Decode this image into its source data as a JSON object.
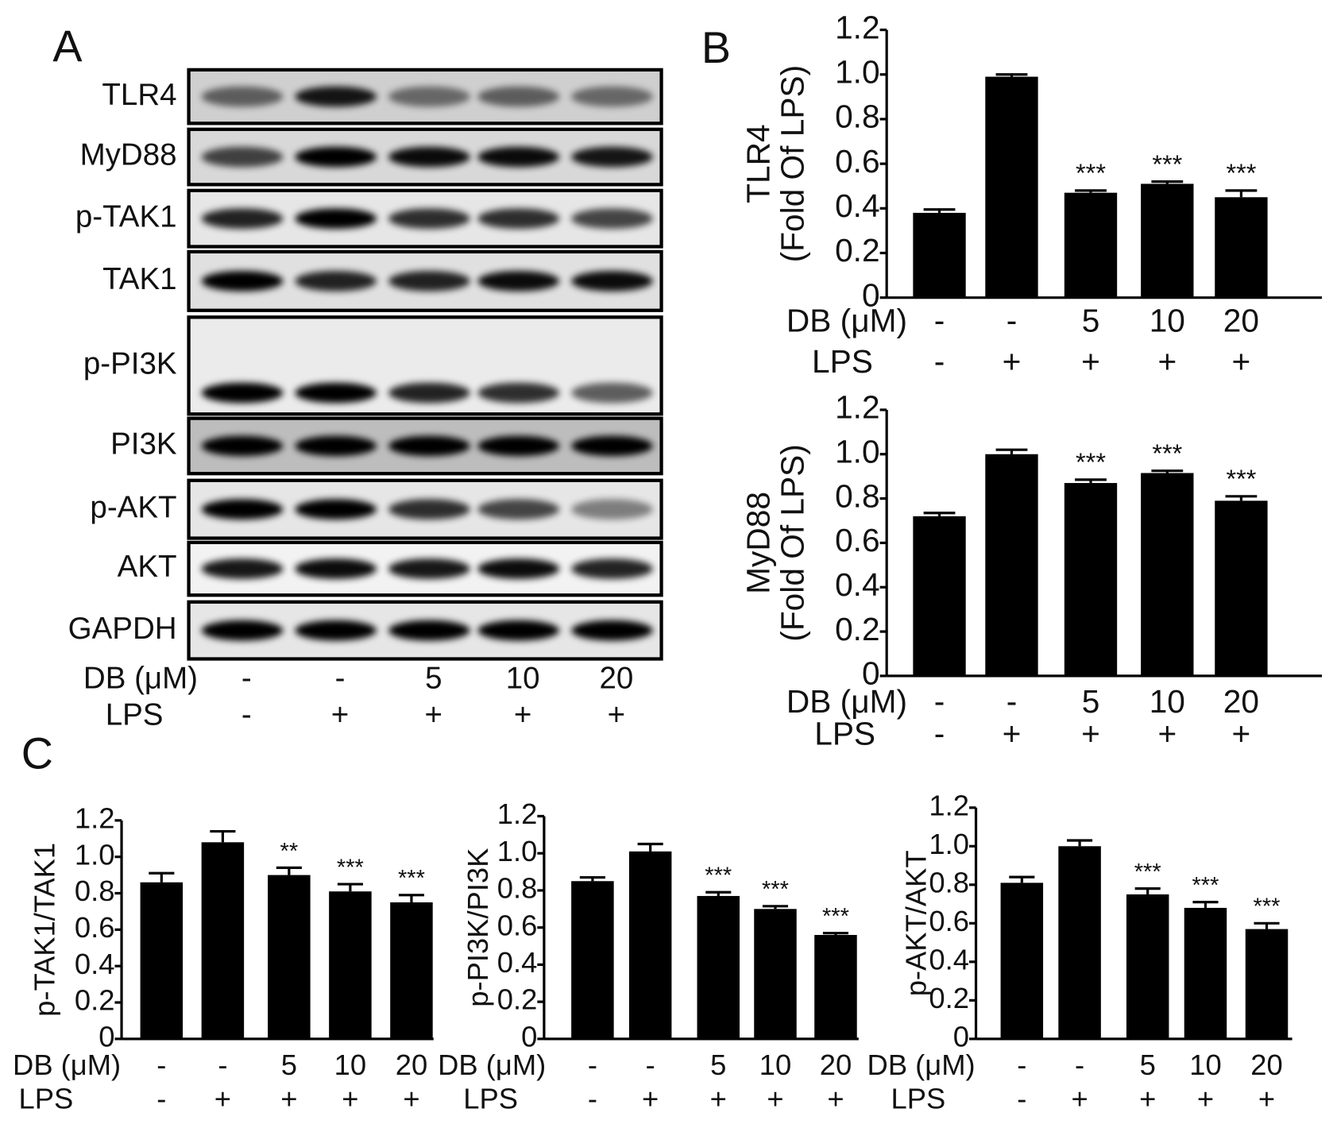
{
  "blot": {
    "panel": "A",
    "rows": [
      "TLR4",
      "MyD88",
      "p-TAK1",
      "TAK1",
      "p-PI3K",
      "PI3K",
      "p-AKT",
      "AKT",
      "GAPDH"
    ],
    "x_label_rows": [
      {
        "label": "DB (μM)",
        "values": [
          "-",
          "-",
          "5",
          "10",
          "20"
        ]
      },
      {
        "label": "LPS",
        "values": [
          "-",
          "+",
          "+",
          "+",
          "+"
        ]
      }
    ]
  },
  "chart_data": [
    {
      "type": "bar",
      "panel": "B",
      "ylabel": [
        "TLR4",
        "(Fold Of LPS)"
      ],
      "categories": [
        "-",
        "-",
        "5",
        "10",
        "20"
      ],
      "x_label_rows": [
        {
          "label": "DB (μM)",
          "values": [
            "-",
            "-",
            "5",
            "10",
            "20"
          ]
        },
        {
          "label": "LPS",
          "values": [
            "-",
            "+",
            "+",
            "+",
            "+"
          ]
        }
      ],
      "values": [
        0.38,
        0.99,
        0.47,
        0.51,
        0.45
      ],
      "errors": [
        0.015,
        0.01,
        0.01,
        0.01,
        0.03
      ],
      "annotations": [
        null,
        null,
        "***",
        "***",
        "***"
      ],
      "color": "#000000",
      "ylim": [
        0,
        1.2
      ],
      "yticks": [
        {
          "value": 0,
          "label": "0"
        },
        0.2,
        0.4,
        0.6,
        0.8,
        {
          "value": 1,
          "label": "1.0"
        },
        1.2
      ]
    },
    {
      "type": "bar",
      "ylabel": [
        "MyD88",
        "(Fold Of LPS)"
      ],
      "categories": [
        "-",
        "-",
        "5",
        "10",
        "20"
      ],
      "x_label_rows": [
        {
          "label": "DB (μM)",
          "values": [
            "-",
            "-",
            "5",
            "10",
            "20"
          ]
        },
        {
          "label": "LPS",
          "values": [
            "-",
            "+",
            "+",
            "+",
            "+"
          ]
        }
      ],
      "values": [
        0.72,
        1.0,
        0.87,
        0.915,
        0.79
      ],
      "errors": [
        0.015,
        0.02,
        0.015,
        0.01,
        0.02
      ],
      "annotations": [
        null,
        null,
        "***",
        "***",
        "***"
      ],
      "color": "#000000",
      "ylim": [
        0,
        1.2
      ],
      "yticks": [
        {
          "value": 0,
          "label": "0"
        },
        0.2,
        0.4,
        0.6,
        0.8,
        {
          "value": 1,
          "label": "1.0"
        },
        1.2
      ]
    },
    {
      "type": "bar",
      "panel": "C",
      "ylabel": "p-TAK1/TAK1",
      "categories": [
        "-",
        "-",
        "5",
        "10",
        "20"
      ],
      "x_label_rows": [
        {
          "label": "DB (μM)",
          "values": [
            "-",
            "-",
            "5",
            "10",
            "20"
          ]
        },
        {
          "label": "LPS",
          "values": [
            "-",
            "+",
            "+",
            "+",
            "+"
          ]
        }
      ],
      "values": [
        0.86,
        1.08,
        0.9,
        0.81,
        0.75
      ],
      "errors": [
        0.05,
        0.06,
        0.04,
        0.04,
        0.04
      ],
      "annotations": [
        null,
        null,
        "**",
        "***",
        "***"
      ],
      "color": "#000000",
      "ylim": [
        0,
        1.2
      ],
      "yticks": [
        {
          "value": 0,
          "label": "0"
        },
        0.2,
        0.4,
        0.6,
        0.8,
        {
          "value": 1,
          "label": "1.0"
        },
        1.2
      ]
    },
    {
      "type": "bar",
      "ylabel": "p-PI3K/PI3K",
      "categories": [
        "-",
        "-",
        "5",
        "10",
        "20"
      ],
      "x_label_rows": [
        {
          "label": "DB (μM)",
          "values": [
            "-",
            "-",
            "5",
            "10",
            "20"
          ]
        },
        {
          "label": "LPS",
          "values": [
            "-",
            "+",
            "+",
            "+",
            "+"
          ]
        }
      ],
      "values": [
        0.85,
        1.01,
        0.77,
        0.7,
        0.56
      ],
      "errors": [
        0.02,
        0.04,
        0.02,
        0.015,
        0.01
      ],
      "annotations": [
        null,
        null,
        "***",
        "***",
        "***"
      ],
      "color": "#000000",
      "ylim": [
        0,
        1.2
      ],
      "yticks": [
        {
          "value": 0,
          "label": "0"
        },
        0.2,
        0.4,
        0.6,
        0.8,
        {
          "value": 1,
          "label": "1.0"
        },
        1.2
      ]
    },
    {
      "type": "bar",
      "ylabel": "p-AKT/AKT",
      "categories": [
        "-",
        "-",
        "5",
        "10",
        "20"
      ],
      "x_label_rows": [
        {
          "label": "DB (μM)",
          "values": [
            "-",
            "-",
            "5",
            "10",
            "20"
          ]
        },
        {
          "label": "LPS",
          "values": [
            "-",
            "+",
            "+",
            "+",
            "+"
          ]
        }
      ],
      "values": [
        0.81,
        1.0,
        0.75,
        0.68,
        0.57
      ],
      "errors": [
        0.03,
        0.03,
        0.03,
        0.03,
        0.03
      ],
      "annotations": [
        null,
        null,
        "***",
        "***",
        "***"
      ],
      "color": "#000000",
      "ylim": [
        0,
        1.2
      ],
      "yticks": [
        {
          "value": 0,
          "label": "0"
        },
        0.2,
        0.4,
        0.6,
        0.8,
        {
          "value": 1,
          "label": "1.0"
        },
        1.2
      ]
    }
  ]
}
